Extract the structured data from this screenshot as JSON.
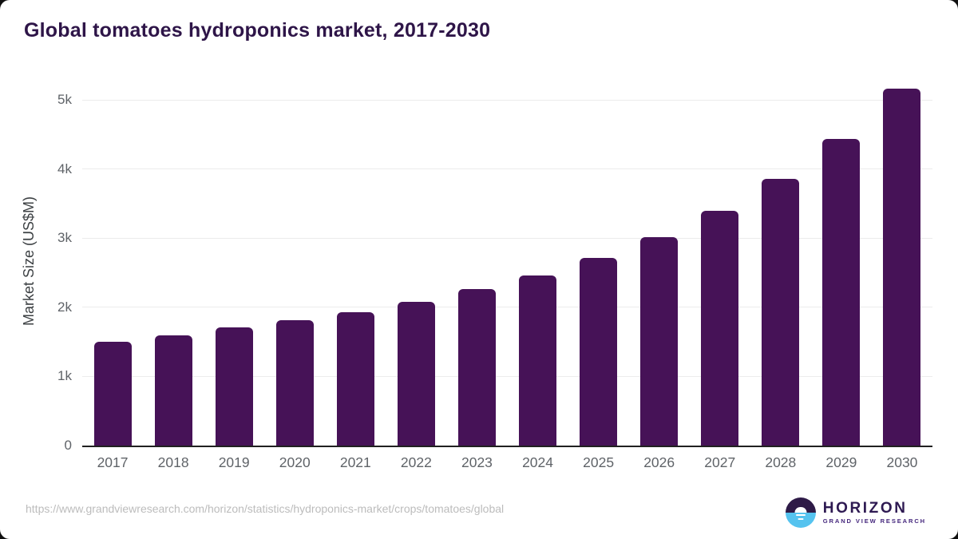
{
  "title": "Global tomatoes hydroponics market, 2017-2030",
  "footer": {
    "source_url": "https://www.grandviewresearch.com/horizon/statistics/hydroponics-market/crops/tomatoes/global",
    "logo": {
      "icon": "horizon-sunrise-icon",
      "name": "HORIZON",
      "subtitle": "GRAND VIEW RESEARCH"
    }
  },
  "colors": {
    "bar": "#461257",
    "title_text": "#2e1548",
    "axis_line": "#212121",
    "gridline": "#ececec",
    "tick_label": "#5f6368",
    "url_text": "#bcbcbc",
    "logo_purple": "#2e1a47",
    "logo_blue": "#55c3ef"
  },
  "chart_data": {
    "type": "bar",
    "title": "Global tomatoes hydroponics market, 2017-2030",
    "categories": [
      "2017",
      "2018",
      "2019",
      "2020",
      "2021",
      "2022",
      "2023",
      "2024",
      "2025",
      "2026",
      "2027",
      "2028",
      "2029",
      "2030"
    ],
    "values": [
      1500,
      1590,
      1710,
      1810,
      1925,
      2080,
      2260,
      2460,
      2720,
      3015,
      3400,
      3865,
      4440,
      5170
    ],
    "xlabel": "",
    "ylabel": "Market Size (US$M)",
    "ylim": [
      0,
      5350
    ],
    "yticks": [
      0,
      1000,
      2000,
      3000,
      4000,
      5000
    ],
    "ytick_labels": [
      "0",
      "1k",
      "2k",
      "3k",
      "4k",
      "5k"
    ],
    "grid": true,
    "legend": "none",
    "bar_color": "#461257"
  }
}
